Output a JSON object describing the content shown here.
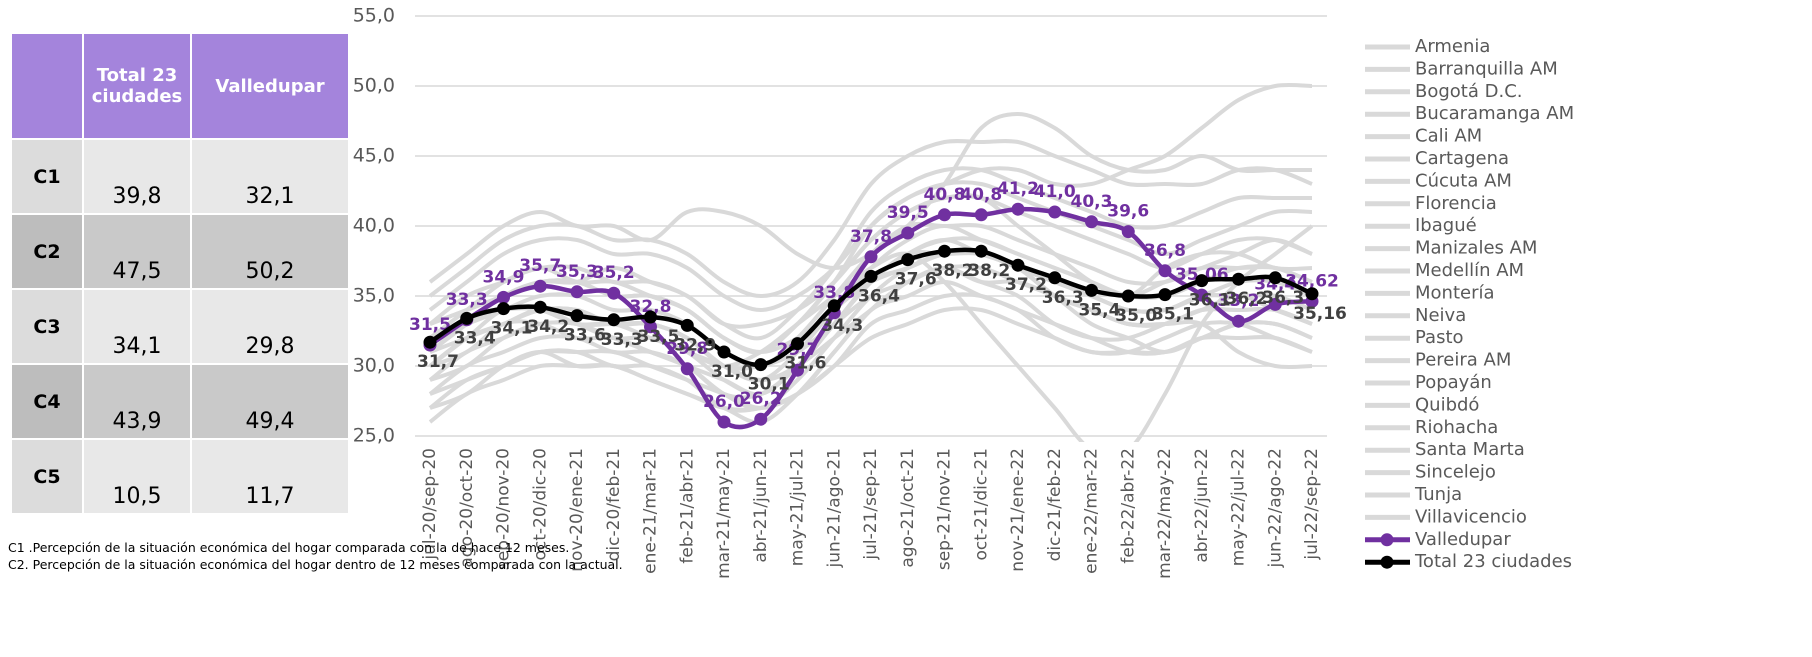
{
  "table": {
    "header": [
      "Total 23 ciudades",
      "Valledupar"
    ],
    "rows": [
      [
        "C1",
        "39,8",
        "32,1"
      ],
      [
        "C2",
        "47,5",
        "50,2"
      ],
      [
        "C3",
        "34,1",
        "29,8"
      ],
      [
        "C4",
        "43,9",
        "49,4"
      ],
      [
        "C5",
        "10,5",
        "11,7"
      ]
    ]
  },
  "chart_data": {
    "type": "line",
    "categories": [
      "jul-20/sep-20",
      "ago-20/oct-20",
      "sep-20/nov-20",
      "oct-20/dic-20",
      "nov-20/ene-21",
      "dic-20/feb-21",
      "ene-21/mar-21",
      "feb-21/abr-21",
      "mar-21/may-21",
      "abr-21/jun-21",
      "may-21/jul-21",
      "jun-21/ago-21",
      "jul-21/sep-21",
      "ago-21/oct-21",
      "sep-21/nov-21",
      "oct-21/dic-21",
      "nov-21/ene-22",
      "dic-21/feb-22",
      "ene-22/mar-22",
      "feb-22/abr-22",
      "mar-22/may-22",
      "abr-22/jun-22",
      "may-22/jul-22",
      "jun-22/ago-22",
      "jul-22/sep-22"
    ],
    "ylim": [
      25,
      55
    ],
    "yticks": [
      {
        "value": 25,
        "label": "25,0"
      },
      {
        "value": 30,
        "label": "30,0"
      },
      {
        "value": 35,
        "label": "35,0"
      },
      {
        "value": 40,
        "label": "40,0"
      },
      {
        "value": 45,
        "label": "45,0"
      },
      {
        "value": 50,
        "label": "50,0"
      },
      {
        "value": 55,
        "label": "55,0"
      }
    ],
    "grid": true,
    "legend": "right",
    "series": [
      {
        "name": "Armenia",
        "color": "#d9d9d9",
        "values": [
          30,
          32,
          33,
          34,
          34,
          33,
          33,
          32,
          30,
          29,
          30,
          33,
          36,
          38,
          39,
          39,
          38,
          37,
          36,
          35,
          35,
          36,
          37,
          37,
          36
        ]
      },
      {
        "name": "Barranquilla AM",
        "color": "#d9d9d9",
        "values": [
          33,
          35,
          36,
          37,
          36,
          36,
          35,
          34,
          32,
          31,
          33,
          36,
          40,
          42,
          43,
          44,
          44,
          43,
          43,
          44,
          45,
          47,
          49,
          50,
          50
        ]
      },
      {
        "name": "Bogotá D.C.",
        "color": "#d9d9d9",
        "values": [
          31,
          33,
          34,
          34,
          33,
          33,
          33,
          32,
          30,
          29,
          31,
          34,
          36,
          37,
          38,
          38,
          37,
          36,
          35,
          34,
          34,
          35,
          35,
          35,
          34
        ]
      },
      {
        "name": "Bucaramanga AM",
        "color": "#d9d9d9",
        "values": [
          34,
          36,
          38,
          39,
          39,
          38,
          38,
          37,
          35,
          34,
          35,
          37,
          40,
          42,
          43,
          43,
          42,
          41,
          40,
          39,
          38,
          39,
          40,
          41,
          41
        ]
      },
      {
        "name": "Cali AM",
        "color": "#d9d9d9",
        "values": [
          30,
          32,
          34,
          34,
          33,
          33,
          32,
          31,
          29,
          28,
          30,
          33,
          36,
          38,
          38,
          38,
          37,
          36,
          35,
          34,
          34,
          35,
          36,
          36,
          35
        ]
      },
      {
        "name": "Cartagena",
        "color": "#d9d9d9",
        "values": [
          35,
          37,
          39,
          40,
          40,
          39,
          39,
          38,
          36,
          35,
          36,
          39,
          43,
          45,
          46,
          46,
          46,
          45,
          44,
          43,
          43,
          43,
          44,
          44,
          43
        ]
      },
      {
        "name": "Cúcuta AM",
        "color": "#d9d9d9",
        "values": [
          28,
          30,
          31,
          32,
          32,
          31,
          31,
          30,
          28,
          27,
          29,
          32,
          35,
          37,
          38,
          38,
          37,
          35,
          33,
          32,
          31,
          32,
          33,
          33,
          32
        ]
      },
      {
        "name": "Florencia",
        "color": "#d9d9d9",
        "values": [
          33,
          34,
          35,
          36,
          36,
          37,
          36,
          35,
          33,
          33,
          34,
          36,
          39,
          41,
          42,
          42,
          40,
          38,
          36,
          35,
          37,
          38,
          38,
          37,
          37
        ]
      },
      {
        "name": "Ibagué",
        "color": "#d9d9d9",
        "values": [
          29,
          30,
          32,
          33,
          33,
          32,
          32,
          31,
          30,
          29,
          30,
          32,
          34,
          36,
          37,
          37,
          36,
          35,
          34,
          33,
          33,
          34,
          34,
          34,
          33
        ]
      },
      {
        "name": "Manizales AM",
        "color": "#d9d9d9",
        "values": [
          32,
          33,
          34,
          35,
          35,
          34,
          34,
          33,
          31,
          30,
          32,
          35,
          38,
          40,
          40,
          40,
          39,
          38,
          37,
          36,
          36,
          37,
          38,
          39,
          38
        ]
      },
      {
        "name": "Medellín AM",
        "color": "#d9d9d9",
        "values": [
          30,
          31,
          33,
          33,
          32,
          32,
          31,
          30,
          28,
          28,
          30,
          33,
          36,
          37,
          38,
          38,
          37,
          36,
          35,
          34,
          34,
          35,
          35,
          35,
          34
        ]
      },
      {
        "name": "Montería",
        "color": "#d9d9d9",
        "values": [
          27,
          29,
          30,
          31,
          31,
          30,
          30,
          29,
          27,
          27,
          28,
          31,
          34,
          36,
          37,
          36,
          35,
          33,
          32,
          32,
          33,
          34,
          35,
          34,
          33
        ]
      },
      {
        "name": "Neiva",
        "color": "#d9d9d9",
        "values": [
          31,
          33,
          35,
          36,
          36,
          35,
          35,
          34,
          32,
          31,
          32,
          34,
          37,
          39,
          40,
          39,
          38,
          37,
          36,
          35,
          36,
          37,
          37,
          37,
          36
        ]
      },
      {
        "name": "Pasto",
        "color": "#d9d9d9",
        "values": [
          28,
          29,
          30,
          31,
          31,
          31,
          30,
          29,
          28,
          27,
          28,
          30,
          33,
          34,
          35,
          35,
          34,
          33,
          32,
          31,
          31,
          32,
          32,
          32,
          31
        ]
      },
      {
        "name": "Pereira AM",
        "color": "#d9d9d9",
        "values": [
          33,
          34,
          35,
          36,
          36,
          35,
          35,
          34,
          32,
          31,
          33,
          36,
          39,
          41,
          42,
          42,
          41,
          40,
          39,
          38,
          37,
          38,
          39,
          39,
          38
        ]
      },
      {
        "name": "Popayán",
        "color": "#d9d9d9",
        "values": [
          26,
          28,
          29,
          30,
          30,
          30,
          29,
          28,
          27,
          26,
          28,
          31,
          34,
          35,
          36,
          35,
          34,
          32,
          31,
          31,
          32,
          33,
          33,
          32,
          31
        ]
      },
      {
        "name": "Quibdó",
        "color": "#d9d9d9",
        "values": [
          36,
          38,
          40,
          41,
          40,
          40,
          39,
          41,
          41,
          40,
          38,
          37,
          38,
          40,
          43,
          47,
          48,
          47,
          45,
          44,
          44,
          45,
          44,
          44,
          44
        ]
      },
      {
        "name": "Riohacha",
        "color": "#d9d9d9",
        "values": [
          30,
          32,
          33,
          34,
          33,
          32,
          32,
          31,
          30,
          31,
          33,
          35,
          37,
          38,
          36,
          33,
          30,
          27,
          24,
          24,
          28,
          33,
          36,
          38,
          40
        ]
      },
      {
        "name": "Santa Marta",
        "color": "#d9d9d9",
        "values": [
          32,
          34,
          36,
          37,
          37,
          36,
          36,
          35,
          33,
          32,
          34,
          37,
          41,
          43,
          44,
          44,
          43,
          42,
          41,
          40,
          40,
          41,
          42,
          42,
          42
        ]
      },
      {
        "name": "Sincelejo",
        "color": "#d9d9d9",
        "values": [
          29,
          31,
          32,
          33,
          33,
          32,
          31,
          30,
          29,
          28,
          30,
          33,
          36,
          38,
          39,
          38,
          37,
          35,
          34,
          33,
          33,
          34,
          34,
          34,
          33
        ]
      },
      {
        "name": "Tunja",
        "color": "#d9d9d9",
        "values": [
          27,
          28,
          30,
          31,
          30,
          30,
          29,
          28,
          27,
          27,
          28,
          30,
          32,
          33,
          34,
          34,
          33,
          32,
          31,
          31,
          31,
          32,
          33,
          33,
          32
        ]
      },
      {
        "name": "Villavicencio",
        "color": "#d9d9d9",
        "values": [
          31,
          32,
          33,
          34,
          34,
          33,
          33,
          32,
          30,
          30,
          31,
          33,
          35,
          36,
          37,
          36,
          36,
          35,
          34,
          33,
          33,
          33,
          31,
          30,
          30
        ]
      },
      {
        "name": "Valledupar",
        "color": "#7030a0",
        "markers": true,
        "values": [
          31.5,
          33.3,
          34.9,
          35.7,
          35.3,
          35.2,
          32.8,
          29.8,
          26.0,
          26.2,
          29.7,
          33.8,
          37.8,
          39.5,
          40.8,
          40.8,
          41.2,
          41.0,
          40.3,
          39.6,
          36.8,
          35.06,
          33.2,
          34.4,
          34.62
        ],
        "value_labels": [
          "31,5",
          "33,3",
          "34,9",
          "35,7",
          "35,3",
          "35,2",
          "32,8",
          "29,8",
          "26,0",
          "26,2",
          "29,7",
          "33,8",
          "37,8",
          "39,5",
          "40,8",
          "40,8",
          "41,2",
          "41,0",
          "40,3",
          "39,6",
          "36,8",
          "35,06",
          "33,2",
          "34,4",
          "34,62"
        ]
      },
      {
        "name": "Total 23 ciudades",
        "color": "#000000",
        "markers": true,
        "values": [
          31.7,
          33.4,
          34.1,
          34.2,
          33.6,
          33.3,
          33.5,
          32.9,
          31.0,
          30.1,
          31.6,
          34.3,
          36.4,
          37.6,
          38.2,
          38.2,
          37.2,
          36.3,
          35.4,
          35.0,
          35.1,
          36.1,
          36.2,
          36.3,
          35.16
        ],
        "value_labels": [
          "31,7",
          "33,4",
          "34,1",
          "34,2",
          "33,6",
          "33,3",
          "33,5",
          "32,9",
          "31,0",
          "30,1",
          "31,6",
          "34,3",
          "36,4",
          "37,6",
          "38,2",
          "38,2",
          "37,2",
          "36,3",
          "35,4",
          "35,0",
          "35,1",
          "36,1",
          "36,2",
          "36,3",
          "35,16"
        ]
      }
    ]
  },
  "notes": [
    "C1 .Percepción de la situación económica del hogar comparada con la de hace 12 meses.",
    "C2. Percepción de la situación económica del hogar dentro de 12 meses comparada con la actual."
  ]
}
